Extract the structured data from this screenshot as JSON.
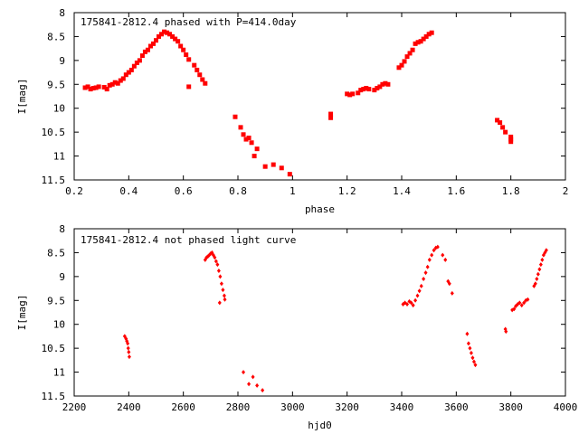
{
  "chart_data": [
    {
      "type": "scatter",
      "title": "175841-2812.4 phased with P=414.0day",
      "xlabel": "phase",
      "ylabel": "I[mag]",
      "xlim": [
        0.2,
        2.0
      ],
      "ylim": [
        8,
        11.5
      ],
      "y_inverted": true,
      "x_ticks": [
        "0.2",
        "0.4",
        "0.6",
        "0.8",
        "1",
        "1.2",
        "1.4",
        "1.6",
        "1.8",
        "2"
      ],
      "y_ticks": [
        "8",
        "8.5",
        "9",
        "9.5",
        "10",
        "10.5",
        "11",
        "11.5"
      ],
      "marker": "filled-square",
      "series": [
        {
          "color": "#ff0000",
          "points": [
            [
              0.24,
              9.57
            ],
            [
              0.25,
              9.55
            ],
            [
              0.26,
              9.6
            ],
            [
              0.27,
              9.58
            ],
            [
              0.28,
              9.57
            ],
            [
              0.29,
              9.55
            ],
            [
              0.31,
              9.56
            ],
            [
              0.32,
              9.6
            ],
            [
              0.33,
              9.52
            ],
            [
              0.34,
              9.5
            ],
            [
              0.35,
              9.46
            ],
            [
              0.36,
              9.48
            ],
            [
              0.37,
              9.42
            ],
            [
              0.38,
              9.38
            ],
            [
              0.39,
              9.3
            ],
            [
              0.4,
              9.25
            ],
            [
              0.41,
              9.2
            ],
            [
              0.42,
              9.12
            ],
            [
              0.43,
              9.05
            ],
            [
              0.44,
              9.0
            ],
            [
              0.45,
              8.9
            ],
            [
              0.46,
              8.82
            ],
            [
              0.47,
              8.78
            ],
            [
              0.48,
              8.7
            ],
            [
              0.49,
              8.65
            ],
            [
              0.5,
              8.58
            ],
            [
              0.51,
              8.5
            ],
            [
              0.52,
              8.45
            ],
            [
              0.53,
              8.4
            ],
            [
              0.54,
              8.42
            ],
            [
              0.55,
              8.45
            ],
            [
              0.56,
              8.5
            ],
            [
              0.57,
              8.55
            ],
            [
              0.58,
              8.6
            ],
            [
              0.59,
              8.7
            ],
            [
              0.6,
              8.78
            ],
            [
              0.61,
              8.88
            ],
            [
              0.62,
              8.98
            ],
            [
              0.62,
              9.55
            ],
            [
              0.64,
              9.1
            ],
            [
              0.65,
              9.2
            ],
            [
              0.66,
              9.3
            ],
            [
              0.67,
              9.4
            ],
            [
              0.68,
              9.48
            ],
            [
              0.79,
              10.18
            ],
            [
              0.81,
              10.4
            ],
            [
              0.82,
              10.55
            ],
            [
              0.83,
              10.65
            ],
            [
              0.84,
              10.62
            ],
            [
              0.85,
              10.72
            ],
            [
              0.86,
              11.0
            ],
            [
              0.87,
              10.85
            ],
            [
              0.9,
              11.22
            ],
            [
              0.93,
              11.18
            ],
            [
              0.96,
              11.25
            ],
            [
              0.99,
              11.38
            ],
            [
              1.14,
              10.12
            ],
            [
              1.14,
              10.2
            ],
            [
              1.2,
              9.7
            ],
            [
              1.21,
              9.72
            ],
            [
              1.22,
              9.7
            ],
            [
              1.24,
              9.68
            ],
            [
              1.25,
              9.62
            ],
            [
              1.26,
              9.6
            ],
            [
              1.27,
              9.58
            ],
            [
              1.28,
              9.6
            ],
            [
              1.3,
              9.62
            ],
            [
              1.31,
              9.58
            ],
            [
              1.32,
              9.55
            ],
            [
              1.33,
              9.5
            ],
            [
              1.34,
              9.48
            ],
            [
              1.35,
              9.5
            ],
            [
              1.39,
              9.15
            ],
            [
              1.4,
              9.1
            ],
            [
              1.41,
              9.02
            ],
            [
              1.42,
              8.92
            ],
            [
              1.43,
              8.85
            ],
            [
              1.44,
              8.78
            ],
            [
              1.45,
              8.65
            ],
            [
              1.46,
              8.62
            ],
            [
              1.47,
              8.6
            ],
            [
              1.48,
              8.55
            ],
            [
              1.49,
              8.5
            ],
            [
              1.5,
              8.45
            ],
            [
              1.51,
              8.42
            ],
            [
              1.75,
              10.25
            ],
            [
              1.76,
              10.3
            ],
            [
              1.77,
              10.4
            ],
            [
              1.78,
              10.5
            ],
            [
              1.8,
              10.6
            ],
            [
              1.8,
              10.65
            ],
            [
              1.8,
              10.7
            ]
          ]
        }
      ]
    },
    {
      "type": "scatter",
      "title": "175841-2812.4 not phased light curve",
      "xlabel": "hjd0",
      "ylabel": "I[mag]",
      "xlim": [
        2200,
        4000
      ],
      "ylim": [
        8,
        11.5
      ],
      "y_inverted": true,
      "x_ticks": [
        "2200",
        "2400",
        "2600",
        "2800",
        "3000",
        "3200",
        "3400",
        "3600",
        "3800",
        "4000"
      ],
      "y_ticks": [
        "8",
        "8.5",
        "9",
        "9.5",
        "10",
        "10.5",
        "11",
        "11.5"
      ],
      "marker": "filled-diamond",
      "series": [
        {
          "color": "#ff0000",
          "points": [
            [
              2385,
              10.25
            ],
            [
              2390,
              10.3
            ],
            [
              2393,
              10.35
            ],
            [
              2396,
              10.4
            ],
            [
              2398,
              10.5
            ],
            [
              2400,
              10.58
            ],
            [
              2402,
              10.68
            ],
            [
              2680,
              8.65
            ],
            [
              2685,
              8.6
            ],
            [
              2690,
              8.58
            ],
            [
              2695,
              8.55
            ],
            [
              2700,
              8.52
            ],
            [
              2705,
              8.5
            ],
            [
              2710,
              8.55
            ],
            [
              2715,
              8.6
            ],
            [
              2720,
              8.68
            ],
            [
              2725,
              8.75
            ],
            [
              2730,
              8.88
            ],
            [
              2735,
              9.0
            ],
            [
              2740,
              9.15
            ],
            [
              2745,
              9.28
            ],
            [
              2750,
              9.4
            ],
            [
              2752,
              9.48
            ],
            [
              2733,
              9.55
            ],
            [
              2820,
              11.0
            ],
            [
              2840,
              11.25
            ],
            [
              2855,
              11.1
            ],
            [
              2870,
              11.28
            ],
            [
              2890,
              11.38
            ],
            [
              3405,
              9.58
            ],
            [
              3412,
              9.55
            ],
            [
              3420,
              9.58
            ],
            [
              3428,
              9.52
            ],
            [
              3435,
              9.55
            ],
            [
              3442,
              9.6
            ],
            [
              3450,
              9.5
            ],
            [
              3458,
              9.4
            ],
            [
              3465,
              9.3
            ],
            [
              3472,
              9.2
            ],
            [
              3480,
              9.05
            ],
            [
              3488,
              8.92
            ],
            [
              3495,
              8.8
            ],
            [
              3502,
              8.65
            ],
            [
              3510,
              8.55
            ],
            [
              3518,
              8.45
            ],
            [
              3525,
              8.4
            ],
            [
              3532,
              8.38
            ],
            [
              3550,
              8.55
            ],
            [
              3560,
              8.65
            ],
            [
              3570,
              9.1
            ],
            [
              3575,
              9.15
            ],
            [
              3585,
              9.35
            ],
            [
              3640,
              10.2
            ],
            [
              3645,
              10.4
            ],
            [
              3650,
              10.5
            ],
            [
              3655,
              10.6
            ],
            [
              3660,
              10.7
            ],
            [
              3665,
              10.78
            ],
            [
              3670,
              10.85
            ],
            [
              3780,
              10.1
            ],
            [
              3782,
              10.15
            ],
            [
              3805,
              9.7
            ],
            [
              3812,
              9.68
            ],
            [
              3818,
              9.62
            ],
            [
              3825,
              9.58
            ],
            [
              3832,
              9.55
            ],
            [
              3840,
              9.6
            ],
            [
              3848,
              9.55
            ],
            [
              3855,
              9.5
            ],
            [
              3862,
              9.48
            ],
            [
              3885,
              9.2
            ],
            [
              3890,
              9.15
            ],
            [
              3895,
              9.05
            ],
            [
              3900,
              8.95
            ],
            [
              3905,
              8.85
            ],
            [
              3910,
              8.75
            ],
            [
              3915,
              8.65
            ],
            [
              3920,
              8.55
            ],
            [
              3925,
              8.5
            ],
            [
              3930,
              8.45
            ]
          ]
        }
      ]
    }
  ]
}
